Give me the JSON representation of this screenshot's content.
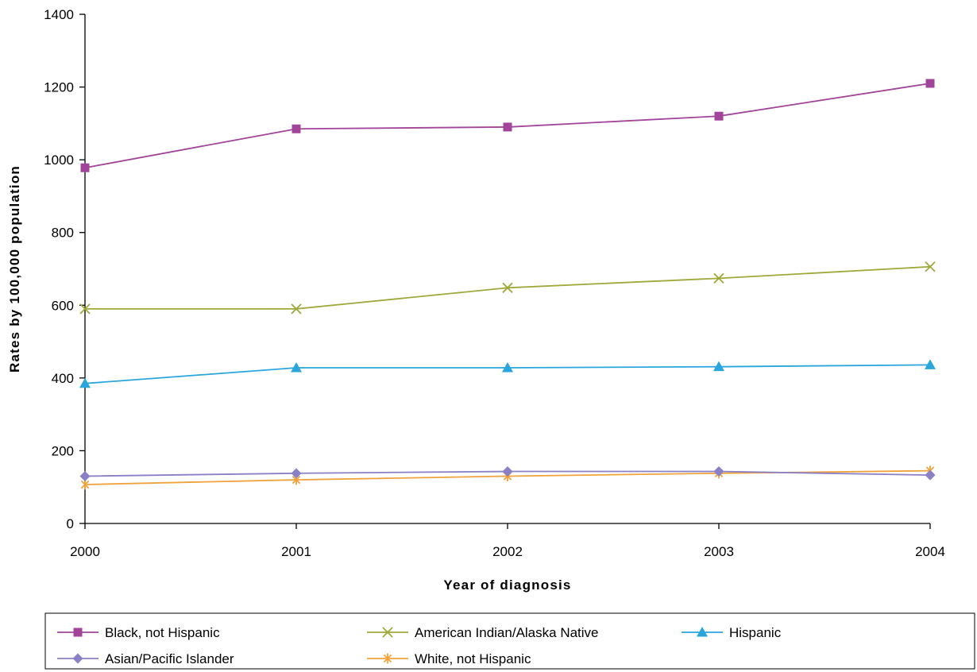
{
  "chart_data": {
    "type": "line",
    "title": "",
    "xlabel": "Year of diagnosis",
    "ylabel": "Rates by 100,000 population",
    "x": [
      "2000",
      "2001",
      "2002",
      "2003",
      "2004"
    ],
    "ylim": [
      0,
      1400
    ],
    "yticks": [
      0,
      200,
      400,
      600,
      800,
      1000,
      1200,
      1400
    ],
    "grid": false,
    "legend_position": "bottom",
    "series": [
      {
        "name": "Black, not Hispanic",
        "values": [
          978,
          1085,
          1090,
          1120,
          1210
        ],
        "color": "#a2449a",
        "marker": "square"
      },
      {
        "name": "American Indian/Alaska Native",
        "values": [
          590,
          590,
          648,
          674,
          706
        ],
        "color": "#9fa83b",
        "marker": "x"
      },
      {
        "name": "Hispanic",
        "values": [
          385,
          428,
          428,
          431,
          436
        ],
        "color": "#2aa6dc",
        "marker": "triangle"
      },
      {
        "name": "Asian/Pacific Islander",
        "values": [
          130,
          138,
          143,
          143,
          133
        ],
        "color": "#8a80c6",
        "marker": "diamond"
      },
      {
        "name": "White, not Hispanic",
        "values": [
          107,
          120,
          130,
          138,
          145
        ],
        "color": "#f0a33c",
        "marker": "asterisk"
      }
    ]
  }
}
